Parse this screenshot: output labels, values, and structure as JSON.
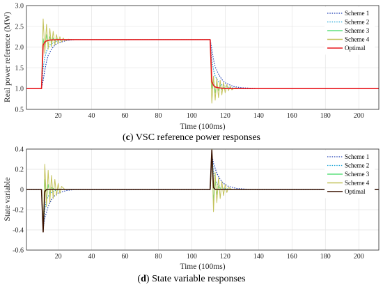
{
  "chart_data": [
    {
      "type": "line",
      "caption_letter": "c",
      "caption_text": " VSC reference power responses",
      "xlabel": "Time (100ms)",
      "ylabel": "Real power reference (MW)",
      "xlim": [
        1,
        212
      ],
      "ylim": [
        0.5,
        3.0
      ],
      "xticks": [
        "20",
        "40",
        "60",
        "80",
        "100",
        "120",
        "140",
        "160",
        "180",
        "200"
      ],
      "yticks": [
        "0.5",
        "1.0",
        "1.5",
        "2.0",
        "2.5",
        "3.0"
      ],
      "grid": true,
      "legend_position": "top-right",
      "series": [
        {
          "name": "Scheme 1",
          "color": "#1f3fb4",
          "dash": "dotted",
          "points": [
            [
              1,
              1.0
            ],
            [
              10,
              1.0
            ],
            [
              11,
              1.2
            ],
            [
              12,
              1.45
            ],
            [
              13,
              1.65
            ],
            [
              14,
              1.8
            ],
            [
              16,
              1.95
            ],
            [
              18,
              2.05
            ],
            [
              20,
              2.1
            ],
            [
              25,
              2.16
            ],
            [
              30,
              2.18
            ],
            [
              111,
              2.18
            ],
            [
              112,
              1.95
            ],
            [
              113,
              1.7
            ],
            [
              114,
              1.52
            ],
            [
              116,
              1.35
            ],
            [
              118,
              1.22
            ],
            [
              120,
              1.14
            ],
            [
              125,
              1.05
            ],
            [
              130,
              1.02
            ],
            [
              140,
              1.0
            ],
            [
              212,
              1.0
            ]
          ]
        },
        {
          "name": "Scheme 2",
          "color": "#1aa3d6",
          "dash": "dotted",
          "points": [
            [
              1,
              1.0
            ],
            [
              10,
              1.0
            ],
            [
              11,
              1.5
            ],
            [
              12,
              1.75
            ],
            [
              13,
              1.9
            ],
            [
              15,
              2.05
            ],
            [
              18,
              2.13
            ],
            [
              22,
              2.17
            ],
            [
              30,
              2.18
            ],
            [
              111,
              2.18
            ],
            [
              112,
              1.7
            ],
            [
              113,
              1.45
            ],
            [
              114,
              1.3
            ],
            [
              116,
              1.16
            ],
            [
              118,
              1.09
            ],
            [
              122,
              1.03
            ],
            [
              130,
              1.0
            ],
            [
              212,
              1.0
            ]
          ]
        },
        {
          "name": "Scheme 3",
          "color": "#5fe07e",
          "dash": "solid",
          "points": [
            [
              1,
              1.0
            ],
            [
              10,
              1.0
            ],
            [
              11,
              2.2
            ],
            [
              12,
              1.95
            ],
            [
              13,
              2.3
            ],
            [
              14,
              2.05
            ],
            [
              15,
              2.25
            ],
            [
              16,
              2.12
            ],
            [
              17,
              2.22
            ],
            [
              18,
              2.15
            ],
            [
              19,
              2.2
            ],
            [
              21,
              2.18
            ],
            [
              111,
              2.18
            ],
            [
              112,
              1.0
            ],
            [
              113,
              1.25
            ],
            [
              114,
              0.9
            ],
            [
              115,
              1.15
            ],
            [
              116,
              0.95
            ],
            [
              117,
              1.08
            ],
            [
              118,
              0.98
            ],
            [
              119,
              1.03
            ],
            [
              121,
              1.0
            ],
            [
              212,
              1.0
            ]
          ]
        },
        {
          "name": "Scheme 4",
          "color": "#c3c25a",
          "dash": "solid",
          "points": [
            [
              1,
              1.0
            ],
            [
              10,
              1.0
            ],
            [
              11,
              2.68
            ],
            [
              12,
              1.85
            ],
            [
              13,
              2.55
            ],
            [
              14,
              1.95
            ],
            [
              15,
              2.45
            ],
            [
              16,
              2.0
            ],
            [
              17,
              2.38
            ],
            [
              18,
              2.05
            ],
            [
              19,
              2.3
            ],
            [
              20,
              2.08
            ],
            [
              21,
              2.25
            ],
            [
              22,
              2.12
            ],
            [
              23,
              2.22
            ],
            [
              24,
              2.15
            ],
            [
              26,
              2.19
            ],
            [
              28,
              2.18
            ],
            [
              111,
              2.18
            ],
            [
              112,
              0.65
            ],
            [
              113,
              1.3
            ],
            [
              114,
              0.72
            ],
            [
              115,
              1.25
            ],
            [
              116,
              0.78
            ],
            [
              117,
              1.2
            ],
            [
              118,
              0.85
            ],
            [
              119,
              1.15
            ],
            [
              120,
              0.9
            ],
            [
              121,
              1.1
            ],
            [
              122,
              0.95
            ],
            [
              123,
              1.06
            ],
            [
              124,
              0.97
            ],
            [
              126,
              1.02
            ],
            [
              128,
              1.0
            ],
            [
              212,
              1.0
            ]
          ]
        },
        {
          "name": "Optimal",
          "color": "#e8171d",
          "dash": "solid",
          "points": [
            [
              1,
              1.0
            ],
            [
              10,
              1.0
            ],
            [
              11,
              2.05
            ],
            [
              12,
              2.12
            ],
            [
              13,
              2.15
            ],
            [
              15,
              2.17
            ],
            [
              20,
              2.18
            ],
            [
              111,
              2.18
            ],
            [
              112,
              1.16
            ],
            [
              113,
              1.08
            ],
            [
              114,
              1.04
            ],
            [
              116,
              1.02
            ],
            [
              120,
              1.0
            ],
            [
              212,
              1.0
            ]
          ]
        }
      ]
    },
    {
      "type": "line",
      "caption_letter": "d",
      "caption_text": " State variable responses",
      "xlabel": "Time (100ms)",
      "ylabel": "State variable",
      "xlim": [
        1,
        212
      ],
      "ylim": [
        -0.6,
        0.4
      ],
      "xticks": [
        "20",
        "40",
        "60",
        "80",
        "100",
        "120",
        "140",
        "160",
        "180",
        "200"
      ],
      "yticks": [
        "-0.6",
        "-0.4",
        "-0.2",
        "0",
        "0.2",
        "0.4"
      ],
      "grid": true,
      "legend_position": "top-right",
      "series": [
        {
          "name": "Scheme 1",
          "color": "#1f3fb4",
          "dash": "dotted",
          "points": [
            [
              1,
              0
            ],
            [
              10,
              0
            ],
            [
              11,
              -0.38
            ],
            [
              12,
              -0.28
            ],
            [
              14,
              -0.17
            ],
            [
              16,
              -0.1
            ],
            [
              18,
              -0.06
            ],
            [
              20,
              -0.035
            ],
            [
              25,
              -0.01
            ],
            [
              30,
              0
            ],
            [
              111,
              0
            ],
            [
              112,
              0.35
            ],
            [
              113,
              0.26
            ],
            [
              115,
              0.16
            ],
            [
              117,
              0.1
            ],
            [
              119,
              0.06
            ],
            [
              122,
              0.03
            ],
            [
              127,
              0.01
            ],
            [
              135,
              0
            ],
            [
              212,
              0
            ]
          ]
        },
        {
          "name": "Scheme 2",
          "color": "#1aa3d6",
          "dash": "dotted",
          "points": [
            [
              1,
              0
            ],
            [
              10,
              0
            ],
            [
              11,
              -0.4
            ],
            [
              12,
              -0.2
            ],
            [
              13,
              -0.1
            ],
            [
              15,
              -0.04
            ],
            [
              18,
              -0.01
            ],
            [
              22,
              0
            ],
            [
              111,
              0
            ],
            [
              112,
              0.37
            ],
            [
              113,
              0.18
            ],
            [
              114,
              0.09
            ],
            [
              116,
              0.04
            ],
            [
              119,
              0.01
            ],
            [
              125,
              0
            ],
            [
              212,
              0
            ]
          ]
        },
        {
          "name": "Scheme 3",
          "color": "#5fe07e",
          "dash": "solid",
          "points": [
            [
              1,
              0
            ],
            [
              10,
              0
            ],
            [
              11,
              -0.4
            ],
            [
              12,
              0.1
            ],
            [
              13,
              -0.1
            ],
            [
              14,
              0.05
            ],
            [
              15,
              -0.04
            ],
            [
              16,
              0.02
            ],
            [
              18,
              0
            ],
            [
              111,
              0
            ],
            [
              112,
              0.38
            ],
            [
              113,
              -0.12
            ],
            [
              114,
              0.08
            ],
            [
              115,
              -0.05
            ],
            [
              116,
              0.03
            ],
            [
              118,
              0
            ],
            [
              212,
              0
            ]
          ]
        },
        {
          "name": "Scheme 4",
          "color": "#c3c25a",
          "dash": "solid",
          "points": [
            [
              1,
              0
            ],
            [
              10,
              0
            ],
            [
              11,
              -0.42
            ],
            [
              12,
              0.25
            ],
            [
              13,
              -0.17
            ],
            [
              14,
              0.19
            ],
            [
              15,
              -0.13
            ],
            [
              16,
              0.14
            ],
            [
              17,
              -0.09
            ],
            [
              18,
              0.1
            ],
            [
              19,
              -0.06
            ],
            [
              20,
              0.06
            ],
            [
              21,
              -0.04
            ],
            [
              22,
              0.03
            ],
            [
              24,
              0
            ],
            [
              111,
              0
            ],
            [
              112,
              0.4
            ],
            [
              113,
              -0.22
            ],
            [
              114,
              0.17
            ],
            [
              115,
              -0.13
            ],
            [
              116,
              0.12
            ],
            [
              117,
              -0.09
            ],
            [
              118,
              0.08
            ],
            [
              119,
              -0.06
            ],
            [
              120,
              0.05
            ],
            [
              121,
              -0.03
            ],
            [
              122,
              0.02
            ],
            [
              124,
              0
            ],
            [
              212,
              0
            ]
          ]
        },
        {
          "name": "Optimal",
          "color": "#3a1200",
          "dash": "solid",
          "points": [
            [
              1,
              0
            ],
            [
              10,
              0
            ],
            [
              11,
              -0.42
            ],
            [
              12,
              -0.02
            ],
            [
              13,
              0
            ],
            [
              111,
              0
            ],
            [
              112,
              0.39
            ],
            [
              113,
              0.02
            ],
            [
              114,
              0
            ],
            [
              212,
              0
            ]
          ]
        }
      ]
    }
  ]
}
